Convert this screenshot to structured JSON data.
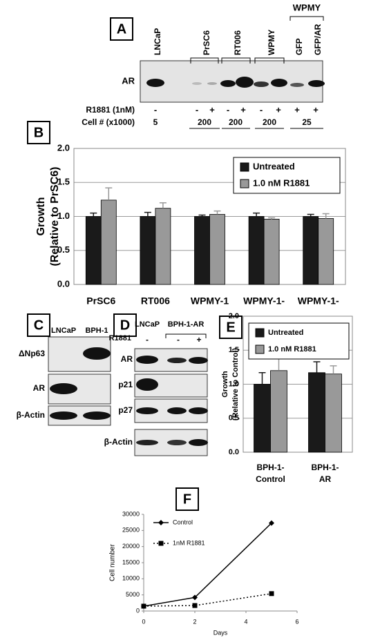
{
  "panel_labels": [
    "A",
    "B",
    "C",
    "D",
    "E",
    "F"
  ],
  "panel_a": {
    "lanes": [
      "LNCaP",
      "PrSC6",
      "RT006",
      "WPMY",
      "GFP",
      "GFP/AR"
    ],
    "group": "WPMY",
    "row_label": "AR",
    "treatment_label": "R1881 (1nM)",
    "treatment": [
      "-",
      "-",
      "+",
      "-",
      "+",
      "-",
      "+",
      "+",
      "+"
    ],
    "cells_label": "Cell # (x1000)",
    "cells": [
      5,
      200,
      200,
      200,
      25
    ]
  },
  "panel_c": {
    "lanes": [
      "LNCaP",
      "BPH-1"
    ],
    "rows": [
      "ΔNp63",
      "AR",
      "β-Actin"
    ]
  },
  "panel_d": {
    "lanes": [
      "LNCaP",
      "BPH-1-AR"
    ],
    "treatment_label": "R1881",
    "treatment": [
      "-",
      "-",
      "+"
    ],
    "rows": [
      "AR",
      "p21",
      "p27",
      "β-Actin"
    ]
  },
  "chart_data": [
    {
      "type": "bar",
      "ylabel": [
        "Growth",
        "(Relative to PrSC6)"
      ],
      "categories": [
        [
          "PrSC6"
        ],
        [
          "RT006"
        ],
        [
          "WPMY-1"
        ],
        [
          "WPMY-1-"
        ],
        [
          "WPMY-1-"
        ]
      ],
      "series": [
        {
          "name": "Untreated",
          "color": "#1a1a1a",
          "values": [
            1.0,
            1.0,
            1.0,
            1.0,
            1.0
          ],
          "errors": [
            0.05,
            0.06,
            0.02,
            0.05,
            0.03
          ]
        },
        {
          "name": "1.0 nM R1881",
          "color": "#999999",
          "values": [
            1.24,
            1.12,
            1.03,
            0.96,
            0.97
          ],
          "errors": [
            0.18,
            0.08,
            0.05,
            0.02,
            0.07
          ]
        }
      ],
      "ylim": [
        0,
        2
      ],
      "yticks": [
        {
          "value": 0,
          "label": "0.0"
        },
        {
          "value": 0.5,
          "label": "0.5"
        },
        {
          "value": 1,
          "label": "1.0"
        },
        {
          "value": 1.5,
          "label": "1.5"
        },
        {
          "value": 2,
          "label": "2.0"
        }
      ],
      "grid": true,
      "legend": "upper right"
    },
    {
      "type": "bar",
      "ylabel": [
        "Growth",
        "(Relative to Control)"
      ],
      "categories": [
        [
          "BPH-1-",
          "Control"
        ],
        [
          "BPH-1-",
          "AR"
        ]
      ],
      "series": [
        {
          "name": "Untreated",
          "color": "#1a1a1a",
          "values": [
            1.0,
            1.17
          ],
          "errors": [
            0.17,
            0.16
          ]
        },
        {
          "name": "1.0 nM R1881",
          "color": "#999999",
          "values": [
            1.2,
            1.15
          ],
          "errors": [
            0.19,
            0.12
          ]
        }
      ],
      "ylim": [
        0,
        2
      ],
      "yticks": [
        {
          "value": 0,
          "label": "0.0"
        },
        {
          "value": 0.5,
          "label": "0.5"
        },
        {
          "value": 1,
          "label": "1.0"
        },
        {
          "value": 1.5,
          "label": "1.5"
        },
        {
          "value": 2,
          "label": "2.0"
        }
      ],
      "grid": true,
      "legend": "upper right"
    },
    {
      "type": "line",
      "ylabel": [
        "Cell number"
      ],
      "xlabel": "Days",
      "x": [
        0,
        2,
        5
      ],
      "series": [
        {
          "name": "Control",
          "color": "#000000",
          "values": [
            1500,
            4200,
            27300
          ],
          "marker": "diamond",
          "dash": false
        },
        {
          "name": "1nM R1881",
          "color": "#000000",
          "values": [
            1500,
            1700,
            5400
          ],
          "marker": "square",
          "dash": true
        }
      ],
      "xlim": [
        0,
        6
      ],
      "xticks": [
        0,
        2,
        4,
        6
      ],
      "ylim": [
        0,
        30000
      ],
      "yticks": [
        0,
        5000,
        10000,
        15000,
        20000,
        25000,
        30000
      ],
      "grid": false,
      "legend": "upper left"
    }
  ]
}
